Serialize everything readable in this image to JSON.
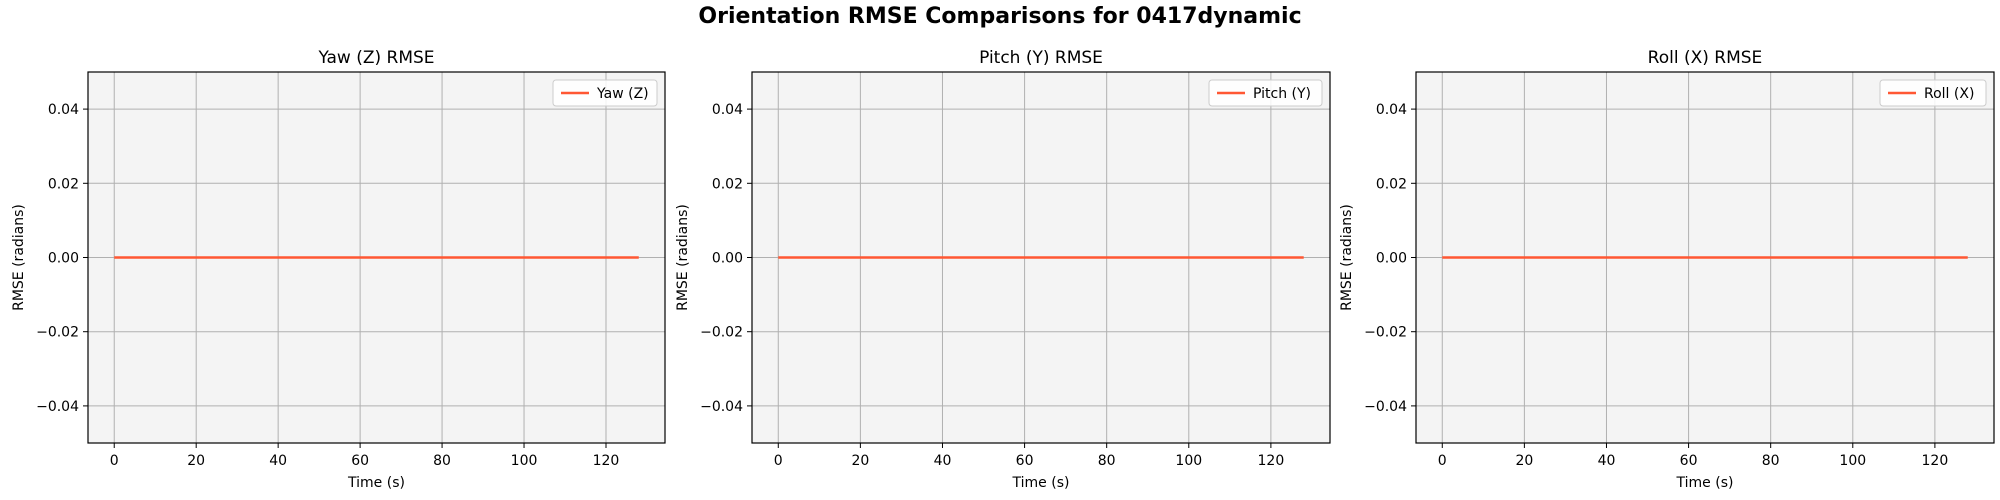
{
  "figure": {
    "title": "Orientation RMSE Comparisons for 0417dynamic"
  },
  "style": {
    "line_color": "#FF5733",
    "plot_background": "#F4F4F4",
    "grid_color": "#B0B0B0"
  },
  "chart_data": [
    {
      "type": "line",
      "title": "Yaw (Z) RMSE",
      "xlabel": "Time (s)",
      "ylabel": "RMSE (radians)",
      "xlim": [
        -6.4,
        134.4
      ],
      "ylim": [
        -0.05,
        0.05
      ],
      "xticks": [
        0,
        20,
        40,
        60,
        80,
        100,
        120
      ],
      "yticks": [
        -0.04,
        -0.02,
        0.0,
        0.02,
        0.04
      ],
      "ytick_labels": [
        "−0.04",
        "−0.02",
        "0.00",
        "0.02",
        "0.04"
      ],
      "grid": true,
      "legend_position": "top-right",
      "series": [
        {
          "name": "Yaw (Z)",
          "color": "#FF5733",
          "x": [
            0,
            128
          ],
          "y": [
            0.0,
            0.0
          ]
        }
      ]
    },
    {
      "type": "line",
      "title": "Pitch (Y) RMSE",
      "xlabel": "Time (s)",
      "ylabel": "RMSE (radians)",
      "xlim": [
        -6.4,
        134.4
      ],
      "ylim": [
        -0.05,
        0.05
      ],
      "xticks": [
        0,
        20,
        40,
        60,
        80,
        100,
        120
      ],
      "yticks": [
        -0.04,
        -0.02,
        0.0,
        0.02,
        0.04
      ],
      "ytick_labels": [
        "−0.04",
        "−0.02",
        "0.00",
        "0.02",
        "0.04"
      ],
      "grid": true,
      "legend_position": "top-right",
      "series": [
        {
          "name": "Pitch (Y)",
          "color": "#FF5733",
          "x": [
            0,
            128
          ],
          "y": [
            0.0,
            0.0
          ]
        }
      ]
    },
    {
      "type": "line",
      "title": "Roll (X) RMSE",
      "xlabel": "Time (s)",
      "ylabel": "RMSE (radians)",
      "xlim": [
        -6.4,
        134.4
      ],
      "ylim": [
        -0.05,
        0.05
      ],
      "xticks": [
        0,
        20,
        40,
        60,
        80,
        100,
        120
      ],
      "yticks": [
        -0.04,
        -0.02,
        0.0,
        0.02,
        0.04
      ],
      "ytick_labels": [
        "−0.04",
        "−0.02",
        "0.00",
        "0.02",
        "0.04"
      ],
      "grid": true,
      "legend_position": "top-right",
      "series": [
        {
          "name": "Roll (X)",
          "color": "#FF5733",
          "x": [
            0,
            128
          ],
          "y": [
            0.0,
            0.0
          ]
        }
      ]
    }
  ]
}
